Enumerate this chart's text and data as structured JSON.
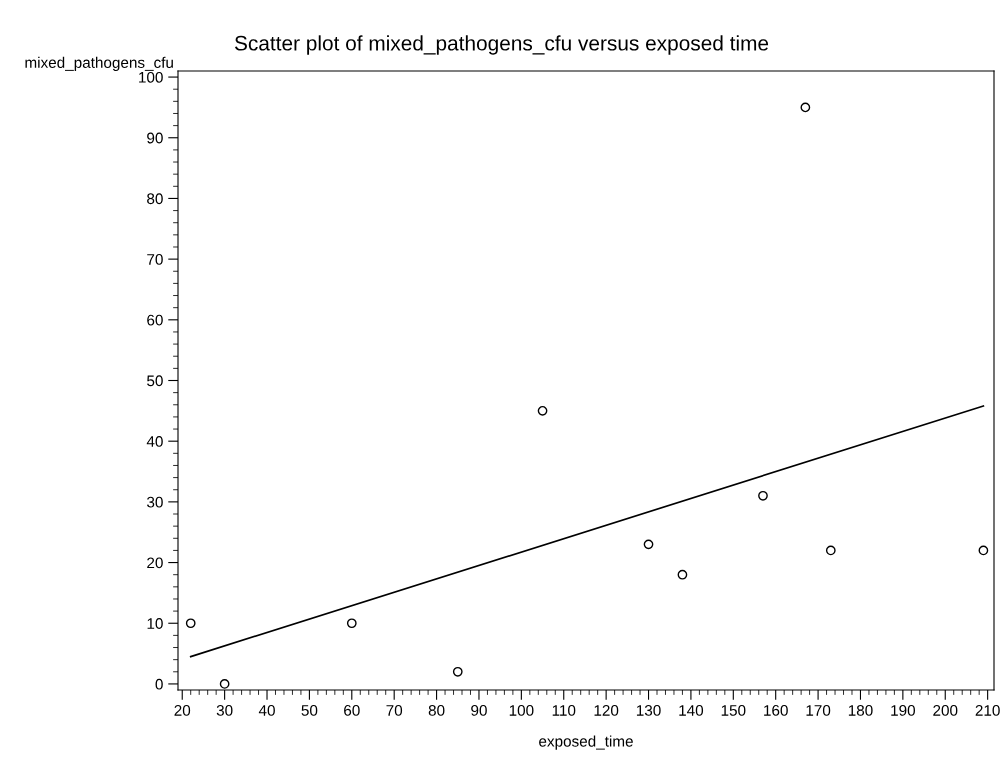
{
  "chart_data": {
    "type": "scatter",
    "title": "Scatter plot of mixed_pathogens_cfu versus exposed time",
    "xlabel": "exposed_time",
    "ylabel": "mixed_pathogens_cfu",
    "x": [
      22,
      30,
      60,
      85,
      105,
      130,
      138,
      157,
      167,
      173,
      209
    ],
    "series": [
      {
        "color": "#000000",
        "marker": "circle",
        "values": [
          10,
          0,
          10,
          2,
          45,
          23,
          18,
          31,
          95,
          22,
          22
        ]
      },
      {
        "type": "line",
        "color": "#000000",
        "line_style": "solid",
        "x": [
          22,
          209
        ],
        "values": [
          4.5,
          45.8
        ]
      }
    ],
    "xlim": [
      19,
      211.5
    ],
    "ylim": [
      -1,
      101
    ],
    "xticks": [
      20,
      30,
      40,
      50,
      60,
      70,
      80,
      90,
      100,
      110,
      120,
      130,
      140,
      150,
      160,
      170,
      180,
      190,
      200,
      210
    ],
    "yticks": [
      0,
      10,
      20,
      30,
      40,
      50,
      60,
      70,
      80,
      90,
      100
    ],
    "grid": false,
    "legend": false
  }
}
